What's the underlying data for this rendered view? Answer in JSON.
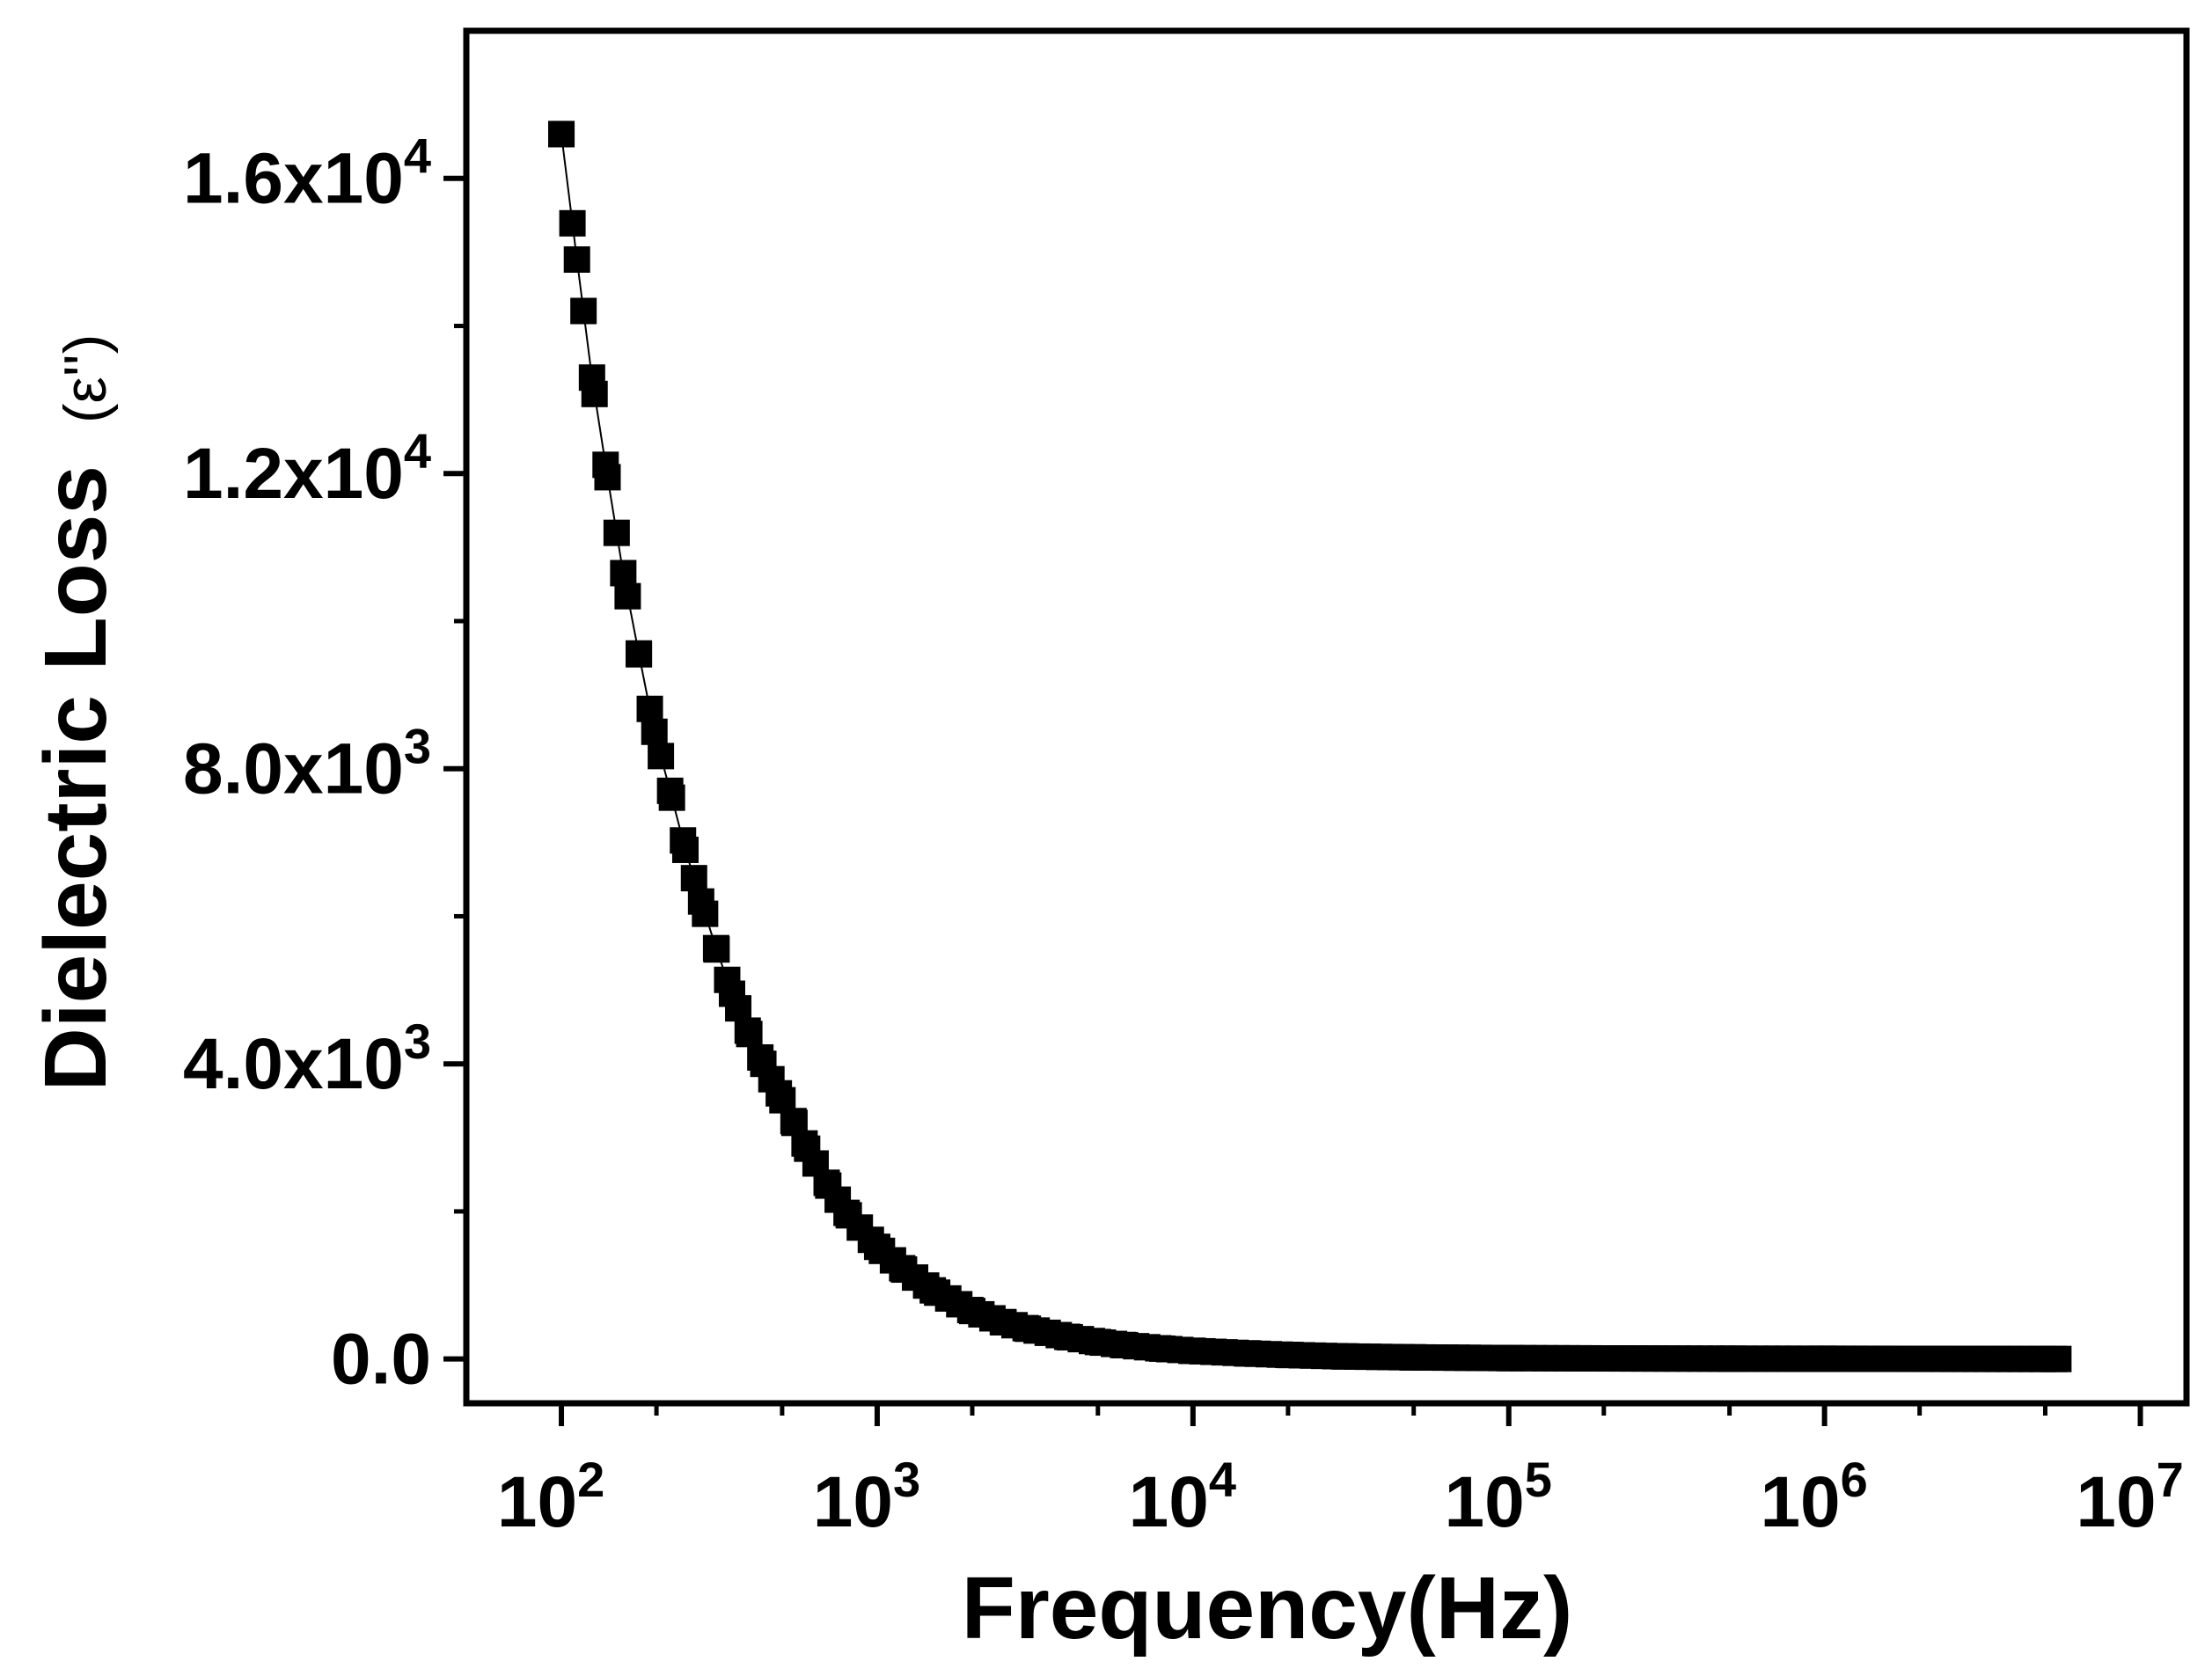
{
  "chart_data": {
    "type": "scatter",
    "title": "",
    "xlabel": "Frequency(Hz)",
    "ylabel_main": "Dielectric Loss",
    "ylabel_unit": "(ε'')",
    "x_scale": "log",
    "xlim": [
      50,
      14000000
    ],
    "ylim": [
      -600,
      18000
    ],
    "x_ticks": [
      {
        "value": 100,
        "base": "10",
        "exp": "2"
      },
      {
        "value": 1000,
        "base": "10",
        "exp": "3"
      },
      {
        "value": 10000,
        "base": "10",
        "exp": "4"
      },
      {
        "value": 100000,
        "base": "10",
        "exp": "5"
      },
      {
        "value": 1000000,
        "base": "10",
        "exp": "6"
      },
      {
        "value": 10000000,
        "base": "10",
        "exp": "7"
      }
    ],
    "y_ticks": [
      {
        "value": 0,
        "mantissa": "0.0",
        "exp": ""
      },
      {
        "value": 4000,
        "mantissa": "4.0x10",
        "exp": "3"
      },
      {
        "value": 8000,
        "mantissa": "8.0x10",
        "exp": "3"
      },
      {
        "value": 12000,
        "mantissa": "1.2x10",
        "exp": "4"
      },
      {
        "value": 16000,
        "mantissa": "1.6x10",
        "exp": "4"
      }
    ],
    "marker": "square",
    "connected": true,
    "series": [
      {
        "name": "Dielectric Loss",
        "x": [
          100,
          112,
          125,
          140,
          157,
          176,
          197,
          221,
          247,
          277,
          310,
          347,
          389,
          436,
          488,
          547,
          600,
          700,
          800,
          1000,
          1200,
          1500,
          2000,
          2500,
          3000,
          4000,
          5000,
          6000,
          8000,
          10000,
          15000,
          20000,
          30000,
          50000,
          100000,
          200000,
          500000,
          1000000,
          2000000,
          5500000
        ],
        "y": [
          16600,
          14900,
          13300,
          11950,
          10650,
          9550,
          8500,
          7700,
          6900,
          6200,
          5550,
          4950,
          4450,
          4000,
          3600,
          3200,
          2850,
          2350,
          1980,
          1520,
          1230,
          930,
          650,
          500,
          410,
          300,
          230,
          190,
          140,
          110,
          75,
          55,
          35,
          22,
          12,
          8,
          4,
          3,
          2,
          0
        ]
      }
    ]
  }
}
